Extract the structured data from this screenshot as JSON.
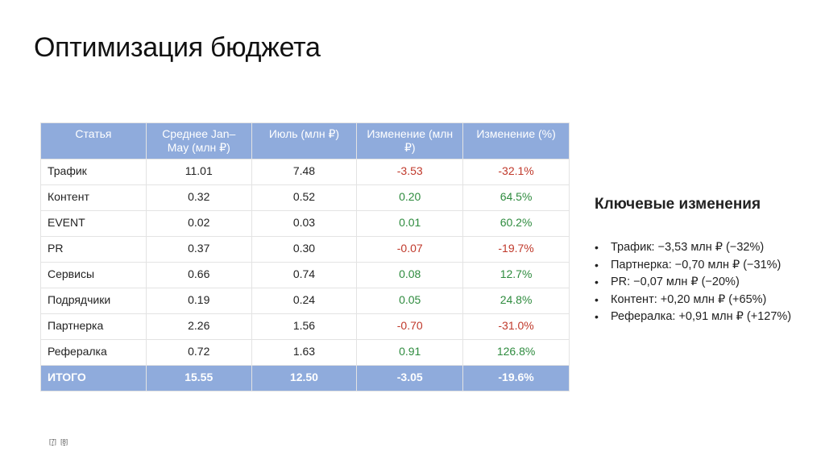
{
  "title": "Оптимизация бюджета",
  "table": {
    "headers": [
      "Статья",
      "Среднее Jan–May (млн ₽)",
      "Июль (млн ₽)",
      "Изменение (млн ₽)",
      "Изменение (%)"
    ],
    "rows": [
      {
        "name": "Трафик",
        "avg": "11.01",
        "july": "7.48",
        "change": "-3.53",
        "pct": "-32.1%",
        "sign": "neg"
      },
      {
        "name": "Контент",
        "avg": "0.32",
        "july": "0.52",
        "change": "0.20",
        "pct": "64.5%",
        "sign": "pos"
      },
      {
        "name": "EVENT",
        "avg": "0.02",
        "july": "0.03",
        "change": "0.01",
        "pct": "60.2%",
        "sign": "pos"
      },
      {
        "name": "PR",
        "avg": "0.37",
        "july": "0.30",
        "change": "-0.07",
        "pct": "-19.7%",
        "sign": "neg"
      },
      {
        "name": "Сервисы",
        "avg": "0.66",
        "july": "0.74",
        "change": "0.08",
        "pct": "12.7%",
        "sign": "pos"
      },
      {
        "name": "Подрядчики",
        "avg": "0.19",
        "july": "0.24",
        "change": "0.05",
        "pct": "24.8%",
        "sign": "pos"
      },
      {
        "name": "Партнерка",
        "avg": "2.26",
        "july": "1.56",
        "change": "-0.70",
        "pct": "-31.0%",
        "sign": "neg"
      },
      {
        "name": "Рефералка",
        "avg": "0.72",
        "july": "1.63",
        "change": "0.91",
        "pct": "126.8%",
        "sign": "pos"
      }
    ],
    "total": {
      "name": "ИТОГО",
      "avg": "15.55",
      "july": "12.50",
      "change": "-3.05",
      "pct": "-19.6%"
    }
  },
  "key_changes": {
    "heading": "Ключевые изменения",
    "items": [
      "Трафик: −3,53 млн ₽ (−32%)",
      "Партнерка: −0,70 млн ₽ (−31%)",
      "PR: −0,07 млн ₽ (−20%)",
      "Контент: +0,20 млн ₽ (+65%)",
      "Рефералка: +0,91 млн ₽ (+127%)"
    ]
  },
  "footnotes": [
    "[7]",
    "[8]"
  ],
  "colors": {
    "header_bg": "#8fabdc",
    "negative": "#c0392b",
    "positive": "#2e8b3e"
  }
}
